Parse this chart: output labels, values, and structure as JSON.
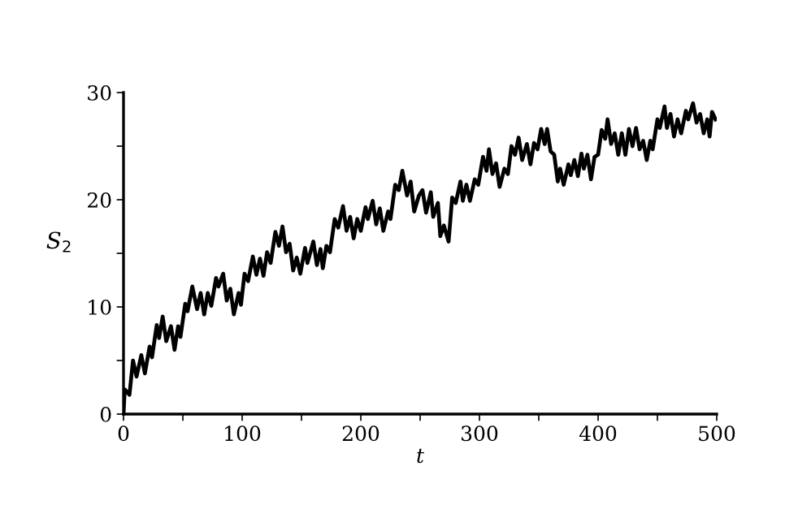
{
  "chart_data": {
    "type": "line",
    "xlabel": "t",
    "ylabel": "S$_{2}$",
    "xlim": [
      0,
      500
    ],
    "ylim": [
      0,
      30
    ],
    "xticks": [
      0,
      {
        "value": 50,
        "label": null
      },
      100,
      {
        "value": 150,
        "label": null
      },
      200,
      {
        "value": 250,
        "label": null
      },
      300,
      {
        "value": 350,
        "label": null
      },
      400,
      {
        "value": 450,
        "label": null
      },
      500
    ],
    "yticks": [
      0,
      {
        "value": 5,
        "label": null
      },
      10,
      {
        "value": 15,
        "label": null
      },
      20,
      {
        "value": 25,
        "label": null
      },
      30
    ],
    "grid": false,
    "marker": "none",
    "line_style": "solid",
    "series": [
      {
        "color": "#000000",
        "x": [
          0,
          1,
          5,
          8,
          11,
          15,
          18,
          22,
          24,
          28,
          30,
          33,
          36,
          40,
          43,
          46,
          48,
          52,
          54,
          58,
          62,
          65,
          68,
          71,
          74,
          78,
          80,
          84,
          87,
          90,
          93,
          97,
          99,
          102,
          105,
          109,
          112,
          115,
          118,
          121,
          124,
          128,
          131,
          134,
          137,
          140,
          143,
          146,
          149,
          153,
          155,
          160,
          163,
          166,
          168,
          171,
          174,
          178,
          181,
          185,
          188,
          191,
          194,
          197,
          200,
          204,
          206,
          210,
          213,
          216,
          219,
          223,
          225,
          229,
          232,
          235,
          239,
          242,
          245,
          249,
          252,
          255,
          259,
          261,
          265,
          267,
          270,
          274,
          277,
          280,
          284,
          286,
          289,
          292,
          296,
          299,
          303,
          306,
          308,
          311,
          314,
          317,
          321,
          324,
          327,
          330,
          333,
          336,
          340,
          343,
          346,
          349,
          352,
          355,
          357,
          360,
          363,
          366,
          368,
          371,
          375,
          377,
          380,
          383,
          386,
          388,
          391,
          394,
          397,
          400,
          403,
          406,
          408,
          411,
          414,
          417,
          420,
          423,
          426,
          429,
          432,
          435,
          438,
          441,
          444,
          446,
          450,
          452,
          456,
          458,
          461,
          464,
          467,
          470,
          474,
          476,
          480,
          483,
          486,
          489,
          492,
          494,
          496,
          499
        ],
        "values": [
          0,
          2.3,
          1.8,
          5.0,
          3.5,
          5.5,
          3.8,
          6.3,
          5.3,
          8.3,
          7.1,
          9.1,
          6.8,
          8.2,
          6.0,
          8.2,
          7.2,
          10.3,
          9.6,
          11.9,
          9.8,
          11.3,
          9.3,
          11.3,
          10.1,
          12.7,
          11.9,
          13.1,
          10.6,
          11.7,
          9.3,
          11.3,
          10.2,
          13.1,
          12.4,
          14.7,
          13.0,
          14.5,
          12.9,
          15.1,
          14.1,
          17.0,
          15.7,
          17.5,
          15.1,
          15.9,
          13.4,
          14.6,
          13.1,
          15.5,
          14.1,
          16.1,
          13.9,
          15.4,
          13.6,
          15.7,
          15.1,
          18.2,
          17.4,
          19.4,
          17.1,
          18.4,
          16.4,
          18.2,
          17.1,
          19.3,
          18.2,
          19.9,
          17.7,
          19.2,
          17.1,
          18.9,
          18.2,
          21.4,
          20.9,
          22.7,
          20.4,
          21.7,
          18.9,
          20.4,
          20.9,
          18.8,
          20.7,
          18.4,
          19.7,
          16.6,
          17.6,
          16.1,
          20.2,
          19.7,
          21.7,
          19.9,
          21.4,
          19.9,
          21.9,
          21.4,
          24.0,
          22.7,
          24.7,
          22.4,
          23.4,
          21.2,
          22.9,
          22.4,
          25.0,
          24.2,
          25.8,
          23.7,
          25.2,
          23.3,
          25.3,
          24.7,
          26.6,
          25.2,
          26.6,
          24.5,
          24.2,
          21.7,
          22.9,
          21.4,
          23.3,
          22.3,
          23.7,
          22.2,
          24.3,
          22.9,
          24.2,
          21.9,
          24.0,
          24.2,
          26.5,
          25.7,
          27.5,
          25.2,
          26.2,
          24.2,
          26.2,
          24.2,
          26.6,
          25.0,
          26.7,
          24.7,
          25.5,
          23.7,
          25.5,
          24.7,
          27.5,
          26.7,
          28.7,
          26.7,
          28.0,
          25.9,
          27.5,
          26.2,
          28.3,
          27.5,
          29.0,
          27.2,
          28.0,
          26.2,
          27.5,
          25.9,
          28.2,
          27.5
        ]
      }
    ]
  }
}
